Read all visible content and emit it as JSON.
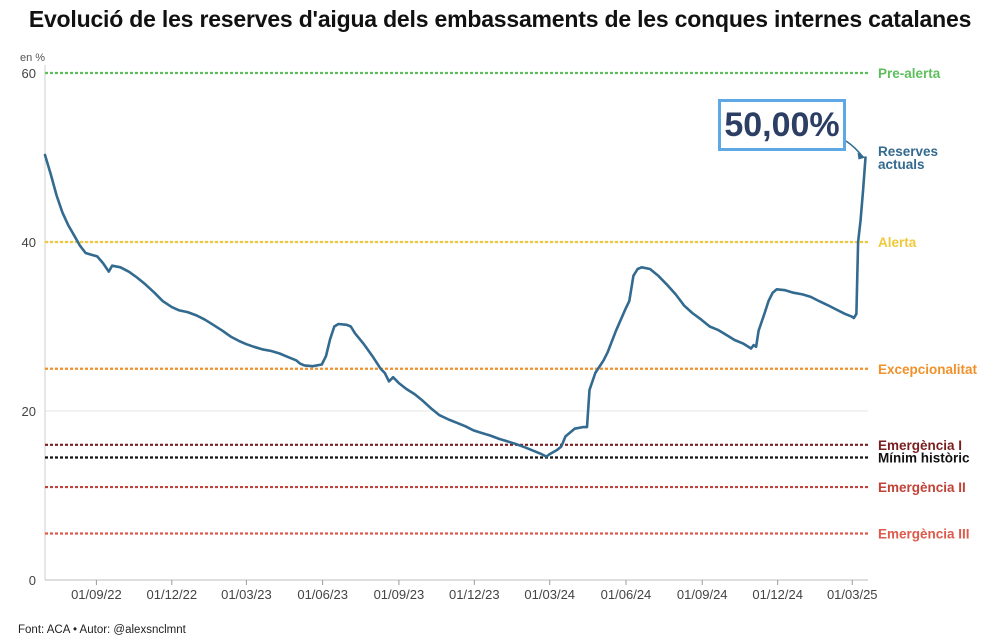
{
  "title": "Evolució de les reserves d'aigua dels embassaments de les conques internes catalanes",
  "source": "Font: ACA • Autor: @alexsnclmnt",
  "chart_data": {
    "type": "line",
    "ylabel_unit": "en %",
    "ylim": [
      0,
      60
    ],
    "y_ticks": [
      "0",
      "20",
      "40",
      "60"
    ],
    "x_tick_labels": [
      "01/09/22",
      "01/12/22",
      "01/03/23",
      "01/06/23",
      "01/09/23",
      "01/12/23",
      "01/03/24",
      "01/06/24",
      "01/09/24",
      "01/12/24",
      "01/03/25"
    ],
    "x_ticks": [
      "2022-09-01",
      "2022-12-01",
      "2023-03-01",
      "2023-06-01",
      "2023-09-01",
      "2023-12-01",
      "2024-03-01",
      "2024-06-01",
      "2024-09-01",
      "2024-12-01",
      "2025-03-01"
    ],
    "xlim": [
      "2022-07-01",
      "2025-03-20"
    ],
    "grid": "horizontal",
    "series": [
      {
        "name": "Reserves actuals",
        "color": "#336a8f",
        "points": [
          [
            "2022-07-01",
            50.3
          ],
          [
            "2022-07-08",
            48
          ],
          [
            "2022-07-15",
            45.5
          ],
          [
            "2022-07-22",
            43.5
          ],
          [
            "2022-07-29",
            42
          ],
          [
            "2022-08-05",
            40.8
          ],
          [
            "2022-08-12",
            39.6
          ],
          [
            "2022-08-19",
            38.7
          ],
          [
            "2022-08-26",
            38.5
          ],
          [
            "2022-09-02",
            38.3
          ],
          [
            "2022-09-09",
            37.5
          ],
          [
            "2022-09-16",
            36.5
          ],
          [
            "2022-09-20",
            37.2
          ],
          [
            "2022-09-30",
            37
          ],
          [
            "2022-10-10",
            36.5
          ],
          [
            "2022-10-20",
            35.8
          ],
          [
            "2022-10-30",
            35
          ],
          [
            "2022-11-10",
            34
          ],
          [
            "2022-11-20",
            33
          ],
          [
            "2022-12-01",
            32.3
          ],
          [
            "2022-12-10",
            31.9
          ],
          [
            "2022-12-20",
            31.7
          ],
          [
            "2022-12-31",
            31.3
          ],
          [
            "2023-01-10",
            30.8
          ],
          [
            "2023-01-20",
            30.2
          ],
          [
            "2023-01-31",
            29.5
          ],
          [
            "2023-02-10",
            28.8
          ],
          [
            "2023-02-20",
            28.3
          ],
          [
            "2023-03-01",
            27.9
          ],
          [
            "2023-03-10",
            27.6
          ],
          [
            "2023-03-20",
            27.3
          ],
          [
            "2023-03-31",
            27.1
          ],
          [
            "2023-04-10",
            26.8
          ],
          [
            "2023-04-20",
            26.4
          ],
          [
            "2023-04-30",
            26
          ],
          [
            "2023-05-05",
            25.6
          ],
          [
            "2023-05-10",
            25.4
          ],
          [
            "2023-05-20",
            25.3
          ],
          [
            "2023-05-31",
            25.5
          ],
          [
            "2023-06-05",
            26.5
          ],
          [
            "2023-06-10",
            28.5
          ],
          [
            "2023-06-15",
            30
          ],
          [
            "2023-06-20",
            30.3
          ],
          [
            "2023-06-30",
            30.2
          ],
          [
            "2023-07-05",
            30
          ],
          [
            "2023-07-10",
            29.2
          ],
          [
            "2023-07-20",
            28
          ],
          [
            "2023-07-31",
            26.5
          ],
          [
            "2023-08-10",
            25
          ],
          [
            "2023-08-15",
            24.5
          ],
          [
            "2023-08-20",
            23.5
          ],
          [
            "2023-08-25",
            24
          ],
          [
            "2023-09-01",
            23.3
          ],
          [
            "2023-09-10",
            22.6
          ],
          [
            "2023-09-20",
            22
          ],
          [
            "2023-09-30",
            21.2
          ],
          [
            "2023-10-10",
            20.3
          ],
          [
            "2023-10-20",
            19.5
          ],
          [
            "2023-10-31",
            19
          ],
          [
            "2023-11-10",
            18.6
          ],
          [
            "2023-11-20",
            18.2
          ],
          [
            "2023-11-30",
            17.7
          ],
          [
            "2023-12-10",
            17.4
          ],
          [
            "2023-12-20",
            17.1
          ],
          [
            "2023-12-31",
            16.7
          ],
          [
            "2024-01-10",
            16.4
          ],
          [
            "2024-01-20",
            16.1
          ],
          [
            "2024-01-31",
            15.7
          ],
          [
            "2024-02-10",
            15.3
          ],
          [
            "2024-02-20",
            14.9
          ],
          [
            "2024-02-26",
            14.6
          ],
          [
            "2024-03-01",
            14.9
          ],
          [
            "2024-03-10",
            15.4
          ],
          [
            "2024-03-15",
            15.8
          ],
          [
            "2024-03-20",
            17
          ],
          [
            "2024-03-31",
            17.9
          ],
          [
            "2024-04-10",
            18.1
          ],
          [
            "2024-04-15",
            18.1
          ],
          [
            "2024-04-18",
            22.5
          ],
          [
            "2024-04-25",
            24.5
          ],
          [
            "2024-05-05",
            26
          ],
          [
            "2024-05-10",
            27
          ],
          [
            "2024-05-20",
            29.5
          ],
          [
            "2024-05-31",
            32
          ],
          [
            "2024-06-05",
            33
          ],
          [
            "2024-06-10",
            36
          ],
          [
            "2024-06-15",
            36.8
          ],
          [
            "2024-06-20",
            37
          ],
          [
            "2024-06-30",
            36.8
          ],
          [
            "2024-07-10",
            36
          ],
          [
            "2024-07-20",
            35
          ],
          [
            "2024-07-31",
            33.8
          ],
          [
            "2024-08-10",
            32.5
          ],
          [
            "2024-08-20",
            31.6
          ],
          [
            "2024-08-31",
            30.8
          ],
          [
            "2024-09-10",
            30
          ],
          [
            "2024-09-20",
            29.6
          ],
          [
            "2024-09-30",
            29
          ],
          [
            "2024-10-10",
            28.4
          ],
          [
            "2024-10-20",
            28
          ],
          [
            "2024-10-30",
            27.4
          ],
          [
            "2024-11-02",
            27.8
          ],
          [
            "2024-11-05",
            27.6
          ],
          [
            "2024-11-08",
            29.5
          ],
          [
            "2024-11-15",
            31.5
          ],
          [
            "2024-11-20",
            33
          ],
          [
            "2024-11-25",
            34
          ],
          [
            "2024-11-30",
            34.4
          ],
          [
            "2024-12-10",
            34.3
          ],
          [
            "2024-12-20",
            34
          ],
          [
            "2024-12-31",
            33.8
          ],
          [
            "2025-01-10",
            33.5
          ],
          [
            "2025-01-20",
            33
          ],
          [
            "2025-01-31",
            32.5
          ],
          [
            "2025-02-10",
            32
          ],
          [
            "2025-02-20",
            31.5
          ],
          [
            "2025-02-28",
            31.2
          ],
          [
            "2025-03-03",
            31
          ],
          [
            "2025-03-06",
            31.5
          ],
          [
            "2025-03-08",
            40
          ],
          [
            "2025-03-11",
            42.5
          ],
          [
            "2025-03-14",
            46
          ],
          [
            "2025-03-17",
            50
          ]
        ]
      }
    ],
    "thresholds": [
      {
        "label": "Pre-alerta",
        "value": 60,
        "color": "#5cbf5c"
      },
      {
        "label": "Alerta",
        "value": 40,
        "color": "#f0c93a"
      },
      {
        "label": "Excepcionalitat",
        "value": 25,
        "color": "#f0912b"
      },
      {
        "label": "Emergència I",
        "value": 16,
        "color": "#7a1f1f"
      },
      {
        "label": "Mínim històric",
        "value": 14.5,
        "color": "#111111"
      },
      {
        "label": "Emergència II",
        "value": 11,
        "color": "#c24238"
      },
      {
        "label": "Emergència III",
        "value": 5.5,
        "color": "#de5a4c"
      }
    ],
    "annotation": {
      "text": "50,00%",
      "color": "#2c3e64",
      "border_color": "#5fa8e6"
    },
    "end_label": [
      "Reserves",
      "actuals"
    ]
  }
}
